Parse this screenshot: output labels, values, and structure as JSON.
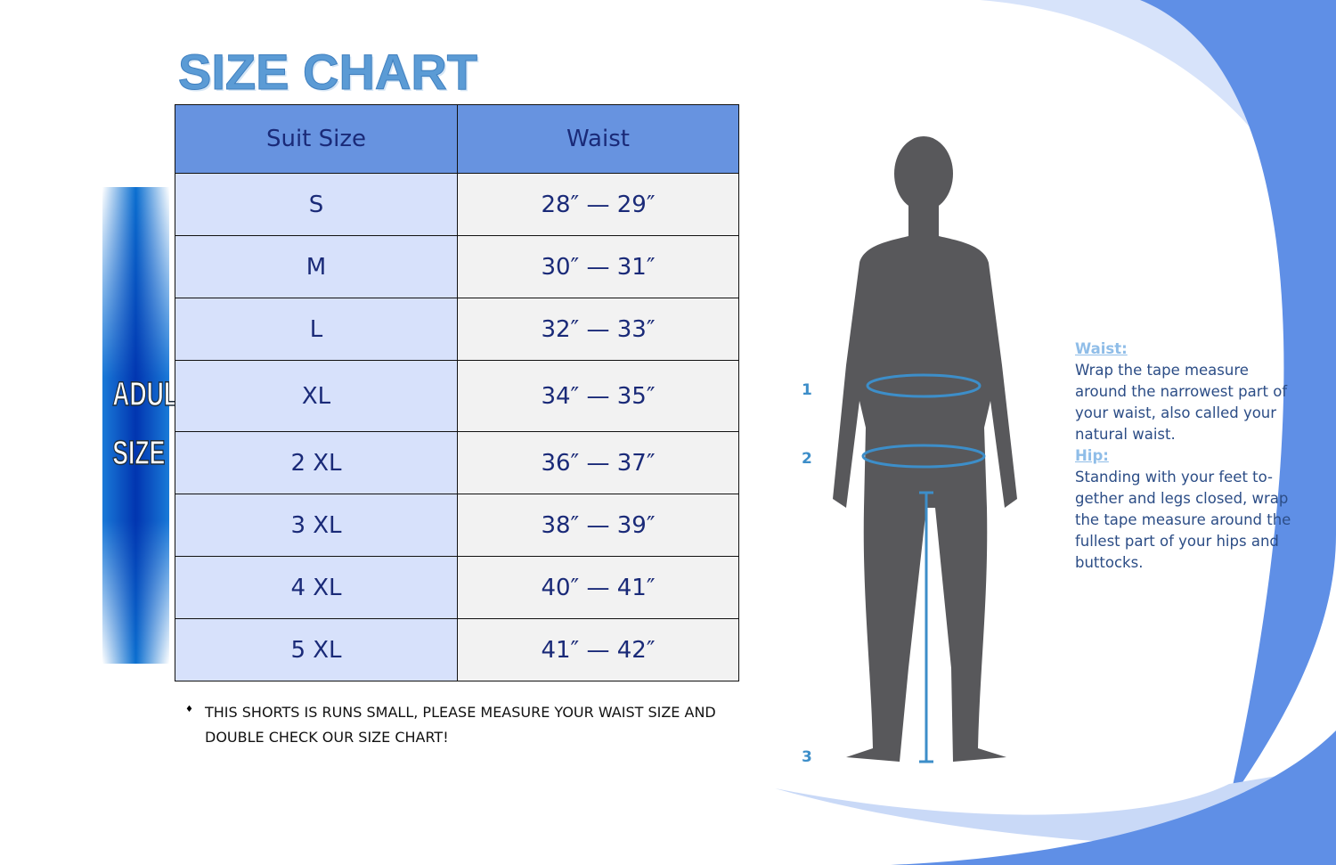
{
  "title": "SIZE CHART",
  "side_label": [
    "ADULT",
    "SIZE"
  ],
  "table": {
    "headers": [
      "Suit Size",
      "Waist"
    ],
    "rows": [
      [
        "S",
        "28″ — 29″"
      ],
      [
        "M",
        "30″ — 31″"
      ],
      [
        "L",
        "32″ — 33″"
      ],
      [
        "XL",
        "34″ — 35″"
      ],
      [
        "2 XL",
        "36″ — 37″"
      ],
      [
        "3 XL",
        "38″ — 39″"
      ],
      [
        "4 XL",
        "40″ — 41″"
      ],
      [
        "5 XL",
        "41″ — 42″"
      ]
    ]
  },
  "note": {
    "bullet": "♦",
    "text": "THIS SHORTS IS RUNS SMALL, PLEASE MEASURE YOUR WAIST SIZE AND DOUBLE CHECK OUR SIZE CHART!"
  },
  "diagram": {
    "markers": [
      "1",
      "2",
      "3"
    ]
  },
  "instructions": {
    "waist_heading": "Waist:",
    "waist_text": "Wrap the tape measure around the narrowest part of your waist, also called your natural waist.",
    "hip_heading": "Hip:",
    "hip_text": "Standing with your feet to-gether and legs closed, wrap the tape measure around the fullest part of your hips and buttocks."
  },
  "colors": {
    "header": "#6793e0",
    "size_col": "#d7e1fb",
    "waist_col": "#f2f2f2",
    "title": "#5b9bd5",
    "accent": "#3d8ec9"
  }
}
